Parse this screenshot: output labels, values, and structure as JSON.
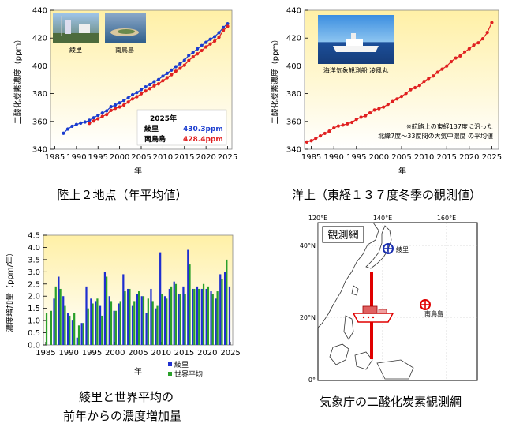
{
  "captions": {
    "land": "陸上２地点（年平均値）",
    "ocean": "洋上（東経１３７度冬季の観測値）",
    "growth_line1": "綾里と世界平均の",
    "growth_line2": "前年からの濃度増加量",
    "map": "気象庁の二酸化炭素観測網"
  },
  "land_panel": {
    "photo_label_1": "綾里",
    "photo_label_2": "南鳥島",
    "legend_year": "2025年",
    "legend_rows": [
      {
        "name": "綾里",
        "value": "430.3ppm",
        "color": "#1a3ccf"
      },
      {
        "name": "南鳥島",
        "value": "428.4ppm",
        "color": "#e02020"
      }
    ]
  },
  "ocean_panel": {
    "photo_label": "海洋気象観測船 凌風丸",
    "note_line1": "※航路上の東経137度に沿った",
    "note_line2": "北緯7度～33度間の大気中濃度 の平均値"
  },
  "growth_panel": {
    "legend": [
      {
        "name": "綾里",
        "color": "#1f2fd0"
      },
      {
        "name": "世界平均",
        "color": "#2aa02a"
      }
    ]
  },
  "map_panel": {
    "title": "観測網",
    "lon_labels": [
      "120°E",
      "140°E",
      "160°E"
    ],
    "lat_labels": [
      "40°N",
      "20°N",
      "0°"
    ],
    "station_1": "綾里",
    "station_2": "南鳥島"
  },
  "chart_data": [
    {
      "type": "line",
      "title": "",
      "xlabel": "年",
      "ylabel": "二酸化炭素濃度（ppm）",
      "xlim": [
        1984,
        2026
      ],
      "ylim": [
        340,
        440
      ],
      "xticks": [
        1985,
        1990,
        1995,
        2000,
        2005,
        2010,
        2015,
        2020,
        2025
      ],
      "yticks": [
        340,
        360,
        380,
        400,
        420,
        440
      ],
      "series": [
        {
          "name": "綾里",
          "color": "#1a3ccf",
          "x": [
            1987,
            1988,
            1989,
            1990,
            1991,
            1992,
            1993,
            1994,
            1995,
            1996,
            1997,
            1998,
            1999,
            2000,
            2001,
            2002,
            2003,
            2004,
            2005,
            2006,
            2007,
            2008,
            2009,
            2010,
            2011,
            2012,
            2013,
            2014,
            2015,
            2016,
            2017,
            2018,
            2019,
            2020,
            2021,
            2022,
            2023,
            2024,
            2025
          ],
          "y": [
            351.5,
            354.5,
            356.5,
            357.8,
            358.8,
            359.6,
            360.8,
            362.6,
            364.4,
            366.0,
            367.6,
            370.6,
            371.8,
            373.4,
            375.1,
            376.9,
            379.2,
            380.8,
            382.9,
            384.8,
            386.6,
            388.6,
            390.1,
            392.6,
            394.6,
            396.9,
            399.4,
            401.5,
            403.9,
            407.5,
            409.8,
            412.2,
            414.6,
            416.9,
            419.1,
            421.0,
            423.9,
            427.6,
            430.3
          ]
        },
        {
          "name": "南鳥島",
          "color": "#e02020",
          "x": [
            1993,
            1994,
            1995,
            1996,
            1997,
            1998,
            1999,
            2000,
            2001,
            2002,
            2003,
            2004,
            2005,
            2006,
            2007,
            2008,
            2009,
            2010,
            2011,
            2012,
            2013,
            2014,
            2015,
            2016,
            2017,
            2018,
            2019,
            2020,
            2021,
            2022,
            2023,
            2024,
            2025
          ],
          "y": [
            358.6,
            360.3,
            361.9,
            363.6,
            364.9,
            367.9,
            369.4,
            370.4,
            371.8,
            373.9,
            376.2,
            377.8,
            379.9,
            381.9,
            383.6,
            385.6,
            387.0,
            389.3,
            391.4,
            393.6,
            396.1,
            398.2,
            400.4,
            403.8,
            406.4,
            408.6,
            411.0,
            413.6,
            415.7,
            417.8,
            420.6,
            425.4,
            428.4
          ]
        }
      ]
    },
    {
      "type": "line",
      "title": "",
      "xlabel": "年",
      "ylabel": "二酸化炭素濃度（ppm）",
      "xlim": [
        1983.5,
        2026.5
      ],
      "ylim": [
        340,
        440
      ],
      "xticks": [
        1985,
        1990,
        1995,
        2000,
        2005,
        2010,
        2015,
        2020,
        2025
      ],
      "yticks": [
        340,
        360,
        380,
        400,
        420,
        440
      ],
      "series": [
        {
          "name": "東経137度冬季",
          "color": "#e02020",
          "x": [
            1984,
            1985,
            1986,
            1987,
            1988,
            1989,
            1990,
            1991,
            1992,
            1993,
            1994,
            1995,
            1996,
            1997,
            1998,
            1999,
            2000,
            2001,
            2002,
            2003,
            2004,
            2005,
            2006,
            2007,
            2008,
            2009,
            2010,
            2011,
            2012,
            2013,
            2014,
            2015,
            2016,
            2017,
            2018,
            2019,
            2020,
            2021,
            2022,
            2023,
            2024,
            2025
          ],
          "y": [
            345.2,
            346.1,
            347.9,
            349.6,
            351.4,
            353.0,
            355.3,
            356.7,
            357.4,
            358.3,
            359.3,
            361.5,
            363.0,
            364.1,
            366.1,
            368.2,
            369.2,
            370.3,
            372.3,
            374.3,
            376.2,
            378.0,
            380.2,
            382.8,
            384.3,
            385.9,
            388.8,
            390.9,
            392.7,
            395.4,
            397.6,
            399.8,
            403.0,
            405.6,
            407.1,
            410.0,
            412.3,
            414.9,
            416.6,
            419.5,
            424.0,
            431.1
          ]
        }
      ]
    },
    {
      "type": "bar",
      "title": "",
      "xlabel": "年",
      "ylabel": "濃度増加量（ppm/年）",
      "xlim": [
        1984.5,
        2025.5
      ],
      "ylim": [
        0,
        4.5
      ],
      "xticks": [
        1985,
        1990,
        1995,
        2000,
        2005,
        2010,
        2015,
        2020,
        2025
      ],
      "yticks": [
        0,
        0.5,
        1.0,
        1.5,
        2.0,
        2.5,
        3.0,
        3.5,
        4.0,
        4.5
      ],
      "categories": [
        1985,
        1986,
        1987,
        1988,
        1989,
        1990,
        1991,
        1992,
        1993,
        1994,
        1995,
        1996,
        1997,
        1998,
        1999,
        2000,
        2001,
        2002,
        2003,
        2004,
        2005,
        2006,
        2007,
        2008,
        2009,
        2010,
        2011,
        2012,
        2013,
        2014,
        2015,
        2016,
        2017,
        2018,
        2019,
        2020,
        2021,
        2022,
        2023,
        2024,
        2025
      ],
      "series": [
        {
          "name": "綾里",
          "color": "#1f2fd0",
          "values": [
            null,
            null,
            1.9,
            2.8,
            2.0,
            1.3,
            1.0,
            0.3,
            0.9,
            2.4,
            1.9,
            1.8,
            1.6,
            3.0,
            2.0,
            1.4,
            1.7,
            2.9,
            2.3,
            1.6,
            2.1,
            2.0,
            1.3,
            2.3,
            1.5,
            3.8,
            2.0,
            2.3,
            2.6,
            2.1,
            2.4,
            3.9,
            2.3,
            2.4,
            2.3,
            2.3,
            2.2,
            1.9,
            2.9,
            3.0,
            2.4
          ]
        },
        {
          "name": "世界平均",
          "color": "#2aa02a",
          "values": [
            1.3,
            1.4,
            2.4,
            2.3,
            1.6,
            1.2,
            1.3,
            0.8,
            0.9,
            1.5,
            1.7,
            1.9,
            1.2,
            2.8,
            1.8,
            1.4,
            1.8,
            2.2,
            2.3,
            1.8,
            2.2,
            2.0,
            1.9,
            1.8,
            1.6,
            2.1,
            1.9,
            2.4,
            2.5,
            2.1,
            2.1,
            3.3,
            2.3,
            2.3,
            2.5,
            2.4,
            2.1,
            2.2,
            2.7,
            3.5,
            null
          ]
        }
      ]
    }
  ]
}
